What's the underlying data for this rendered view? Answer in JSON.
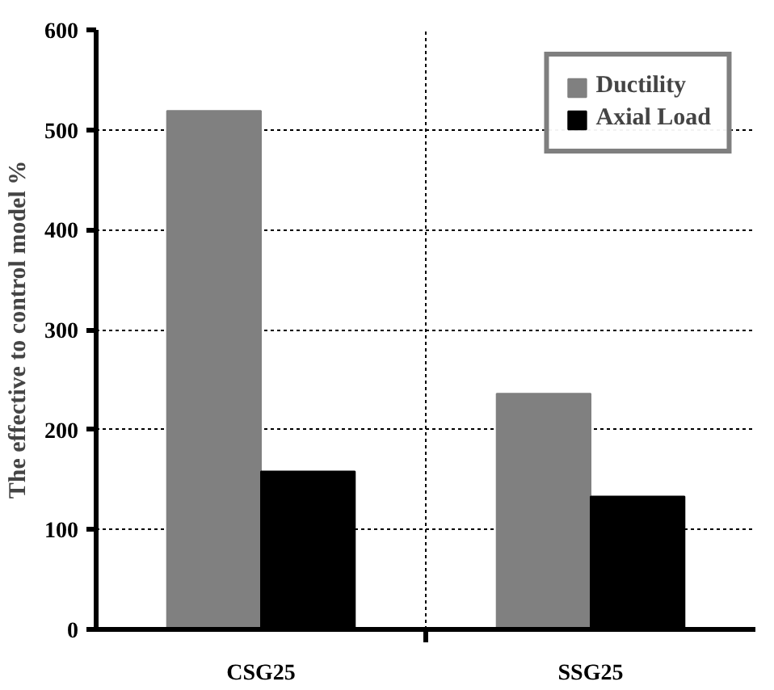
{
  "chart_data": {
    "type": "bar",
    "ylabel": "The effective to control model %",
    "categories": [
      "CSG25",
      "SSG25"
    ],
    "series": [
      {
        "name": "Ductility",
        "color": "#808080",
        "values": [
          519,
          236
        ]
      },
      {
        "name": "Axial Load",
        "color": "#000000",
        "values": [
          158,
          133
        ]
      }
    ],
    "ylim": [
      0,
      600
    ],
    "yticks": [
      0,
      100,
      200,
      300,
      400,
      500,
      600
    ],
    "grid": true,
    "legend": "top right"
  }
}
